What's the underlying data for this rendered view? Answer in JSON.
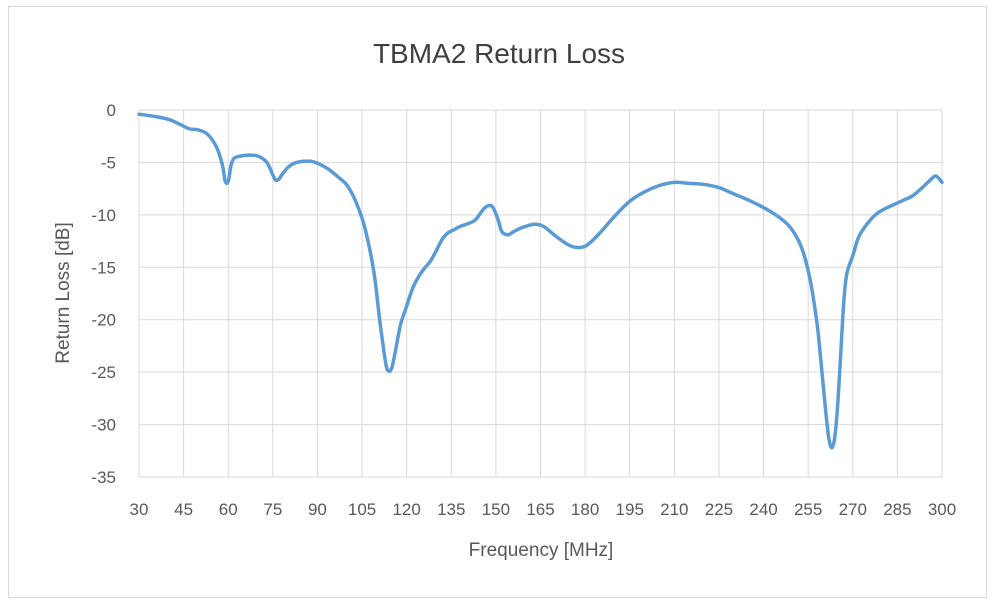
{
  "chart_data": {
    "type": "line",
    "title": "TBMA2 Return Loss",
    "xlabel": "Frequency [MHz]",
    "ylabel": "Return Loss [dB]",
    "xlim": [
      30,
      300
    ],
    "ylim": [
      -35,
      0
    ],
    "x_ticks": [
      30,
      45,
      60,
      75,
      90,
      105,
      120,
      135,
      150,
      165,
      180,
      195,
      210,
      225,
      240,
      255,
      270,
      285,
      300
    ],
    "y_ticks": [
      0,
      -5,
      -10,
      -15,
      -20,
      -25,
      -30,
      -35
    ],
    "grid": true,
    "legend": "none",
    "series": [
      {
        "color": "#5b9bd5",
        "x": [
          30,
          35,
          40,
          44,
          47,
          50,
          53,
          56,
          58,
          59,
          60,
          61,
          62,
          64,
          67,
          70,
          73,
          75,
          76,
          77,
          78,
          80,
          82,
          85,
          88,
          91,
          94,
          97,
          100,
          103,
          106,
          109,
          111,
          113,
          114,
          115,
          116,
          117,
          118,
          120,
          122,
          124,
          126,
          128,
          130,
          132,
          134,
          136,
          138,
          140,
          143,
          146,
          148,
          149,
          150,
          151,
          152,
          154,
          156,
          158,
          160,
          163,
          166,
          170,
          174,
          177,
          180,
          183,
          186,
          190,
          195,
          200,
          205,
          210,
          215,
          220,
          225,
          230,
          235,
          240,
          243,
          246,
          249,
          252,
          254,
          256,
          258,
          259,
          260,
          261,
          262,
          263,
          264,
          265,
          266,
          267,
          268,
          270,
          272,
          275,
          278,
          281,
          284,
          287,
          290,
          293,
          296,
          298,
          300
        ],
        "y": [
          -0.4,
          -0.6,
          -0.9,
          -1.4,
          -1.8,
          -1.9,
          -2.3,
          -3.5,
          -5.2,
          -6.8,
          -6.8,
          -5.2,
          -4.6,
          -4.4,
          -4.3,
          -4.4,
          -5.0,
          -6.2,
          -6.7,
          -6.6,
          -6.2,
          -5.5,
          -5.1,
          -4.9,
          -4.9,
          -5.2,
          -5.7,
          -6.4,
          -7.2,
          -8.8,
          -11.3,
          -15.5,
          -20.2,
          -24.2,
          -24.9,
          -24.6,
          -23.3,
          -21.8,
          -20.4,
          -18.7,
          -17.0,
          -15.9,
          -15.1,
          -14.4,
          -13.4,
          -12.3,
          -11.7,
          -11.4,
          -11.1,
          -10.9,
          -10.5,
          -9.4,
          -9.1,
          -9.3,
          -9.9,
          -10.7,
          -11.6,
          -11.9,
          -11.6,
          -11.3,
          -11.1,
          -10.9,
          -11.1,
          -12.0,
          -12.8,
          -13.1,
          -13.0,
          -12.3,
          -11.4,
          -10.1,
          -8.7,
          -7.8,
          -7.2,
          -6.9,
          -7.0,
          -7.1,
          -7.4,
          -8.0,
          -8.6,
          -9.3,
          -9.8,
          -10.4,
          -11.2,
          -12.6,
          -14.2,
          -16.7,
          -20.4,
          -23.1,
          -26.1,
          -29.0,
          -31.4,
          -32.2,
          -31.1,
          -27.8,
          -23.0,
          -18.2,
          -15.6,
          -13.9,
          -12.1,
          -10.8,
          -9.9,
          -9.4,
          -9.0,
          -8.6,
          -8.2,
          -7.5,
          -6.7,
          -6.3,
          -6.9
        ]
      }
    ]
  }
}
